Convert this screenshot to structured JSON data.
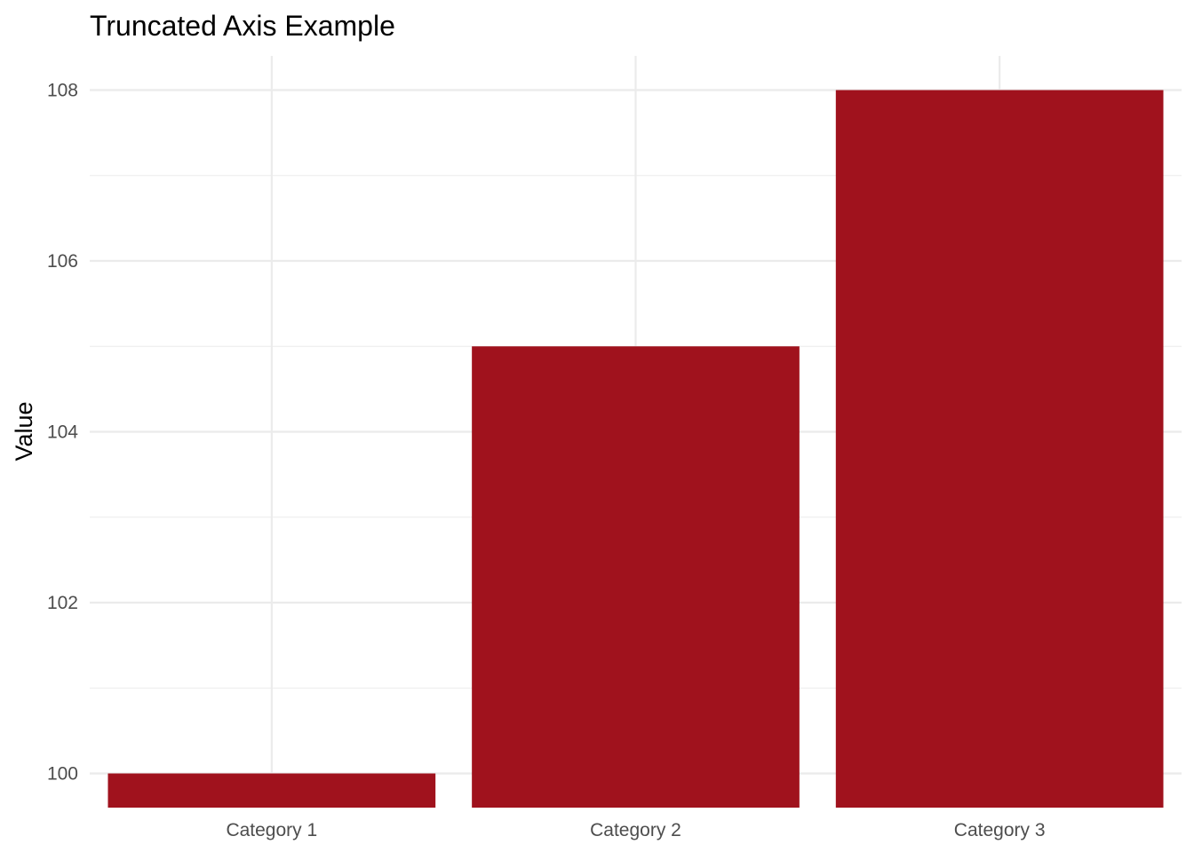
{
  "chart_data": {
    "type": "bar",
    "title": "Truncated Axis Example",
    "xlabel": "",
    "ylabel": "Value",
    "categories": [
      "Category 1",
      "Category 2",
      "Category 3"
    ],
    "values": [
      100,
      105,
      108
    ],
    "ylim": [
      99.6,
      108.4
    ],
    "yticks": [
      "100",
      "102",
      "104",
      "106",
      "108"
    ],
    "grid": true,
    "legend": "none",
    "bar_color": "#A0121D",
    "grid_color": "#EBEBEB"
  }
}
